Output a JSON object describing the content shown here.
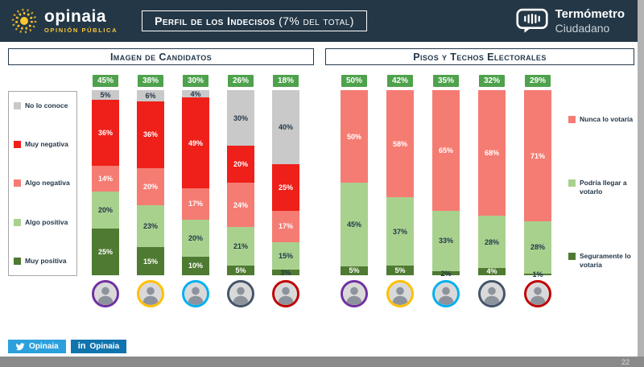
{
  "header": {
    "brand": {
      "name": "opinaia",
      "tagline": "OPINIÓN PÚBLICA"
    },
    "title": {
      "main": "Perfil de los Indecisos",
      "sub": "(7% del total)"
    },
    "termometro": {
      "line1": "Termómetro",
      "line2": "Ciudadano"
    }
  },
  "footer": {
    "twitter_label": "Opinaia",
    "linkedin_label": "Opinaia",
    "linkedin_glyph": "in",
    "page_number": "22"
  },
  "colors": {
    "header_bg": "#243746",
    "brand_yellow": "#fdc82f",
    "badge_green": "#4ea24c",
    "navy_text": "#24384a"
  },
  "chart_data": [
    {
      "type": "bar",
      "stacked": true,
      "title": "Imagen de Candidatos",
      "unit": "%",
      "ylim": [
        0,
        100
      ],
      "legend_position": "left",
      "categories": [
        "candidato 1",
        "candidato 2",
        "candidato 3",
        "candidato 4",
        "candidato 5"
      ],
      "avatar_ring_colors": [
        "#7030a0",
        "#ffc000",
        "#00b0f0",
        "#44546a",
        "#c00000"
      ],
      "badges": [
        "45%",
        "38%",
        "30%",
        "26%",
        "18%"
      ],
      "series": [
        {
          "name": "No lo conoce",
          "color": "#c9c9c9",
          "label_color": "#24384a",
          "values": [
            5,
            6,
            4,
            30,
            40
          ]
        },
        {
          "name": "Muy negativa",
          "color": "#ee2019",
          "label_color": "#ffffff",
          "values": [
            36,
            36,
            49,
            20,
            25
          ]
        },
        {
          "name": "Algo negativa",
          "color": "#f57c73",
          "label_color": "#ffffff",
          "values": [
            14,
            20,
            17,
            24,
            17
          ]
        },
        {
          "name": "Algo positiva",
          "color": "#a9d18e",
          "label_color": "#24384a",
          "values": [
            20,
            23,
            20,
            21,
            15
          ]
        },
        {
          "name": "Muy positiva",
          "color": "#4e7a31",
          "label_color": "#ffffff",
          "values": [
            25,
            15,
            10,
            5,
            3
          ]
        }
      ]
    },
    {
      "type": "bar",
      "stacked": true,
      "title": "Pisos y Techos Electorales",
      "unit": "%",
      "ylim": [
        0,
        100
      ],
      "legend_position": "right",
      "categories": [
        "candidato 1",
        "candidato 2",
        "candidato 3",
        "candidato 4",
        "candidato 5"
      ],
      "avatar_ring_colors": [
        "#7030a0",
        "#ffc000",
        "#00b0f0",
        "#44546a",
        "#c00000"
      ],
      "badges": [
        "50%",
        "42%",
        "35%",
        "32%",
        "29%"
      ],
      "series": [
        {
          "name": "Nunca lo votaría",
          "color": "#f57c73",
          "label_color": "#ffffff",
          "values": [
            50,
            58,
            65,
            68,
            71
          ]
        },
        {
          "name": "Podría llegar a votarlo",
          "color": "#a9d18e",
          "label_color": "#24384a",
          "values": [
            45,
            37,
            33,
            28,
            28
          ]
        },
        {
          "name": "Seguramente lo votaría",
          "color": "#4e7a31",
          "label_color": "#ffffff",
          "values": [
            5,
            5,
            2,
            4,
            1
          ]
        }
      ]
    }
  ]
}
